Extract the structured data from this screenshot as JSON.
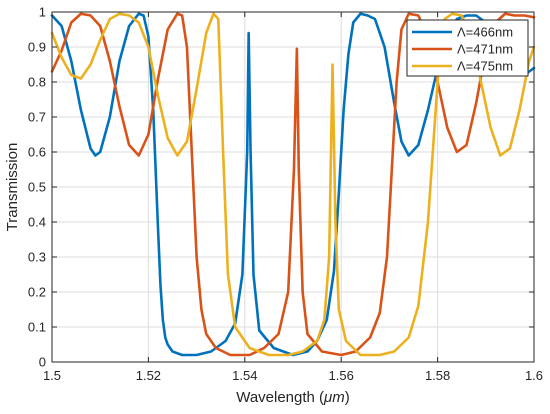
{
  "chart_data": {
    "type": "line",
    "title": "",
    "xlabel_main": "Wavelength (",
    "xlabel_unit": "μm",
    "xlabel_close": ")",
    "ylabel": "Transmission",
    "xlim": [
      1.5,
      1.6
    ],
    "ylim": [
      0,
      1
    ],
    "x_ticks": [
      1.5,
      1.52,
      1.54,
      1.56,
      1.58,
      1.6
    ],
    "x_tick_labels": [
      "1.5",
      "1.52",
      "1.54",
      "1.56",
      "1.58",
      "1.6"
    ],
    "y_ticks": [
      0,
      0.1,
      0.2,
      0.3,
      0.4,
      0.5,
      0.6,
      0.7,
      0.8,
      0.9,
      1
    ],
    "y_tick_labels": [
      "0",
      "0.1",
      "0.2",
      "0.3",
      "0.4",
      "0.5",
      "0.6",
      "0.7",
      "0.8",
      "0.9",
      "1"
    ],
    "grid": true,
    "legend_position": "top-right",
    "series": [
      {
        "name": "Λ=466nm",
        "color": "#0072BD",
        "x": [
          1.5,
          1.502,
          1.504,
          1.506,
          1.508,
          1.509,
          1.51,
          1.512,
          1.514,
          1.516,
          1.518,
          1.519,
          1.52,
          1.521,
          1.522,
          1.5225,
          1.523,
          1.5235,
          1.524,
          1.525,
          1.527,
          1.53,
          1.533,
          1.536,
          1.538,
          1.5395,
          1.5405,
          1.5408,
          1.5412,
          1.5418,
          1.543,
          1.546,
          1.55,
          1.553,
          1.555,
          1.557,
          1.5585,
          1.5595,
          1.5605,
          1.5615,
          1.5625,
          1.564,
          1.5655,
          1.567,
          1.569,
          1.571,
          1.5725,
          1.574,
          1.576,
          1.578,
          1.58,
          1.582,
          1.584,
          1.586,
          1.588,
          1.59,
          1.592,
          1.594,
          1.596,
          1.598,
          1.6
        ],
        "y": [
          0.99,
          0.96,
          0.86,
          0.72,
          0.61,
          0.59,
          0.6,
          0.7,
          0.86,
          0.96,
          0.995,
          0.99,
          0.93,
          0.72,
          0.38,
          0.22,
          0.12,
          0.07,
          0.05,
          0.03,
          0.02,
          0.02,
          0.03,
          0.06,
          0.11,
          0.25,
          0.6,
          0.94,
          0.6,
          0.25,
          0.09,
          0.04,
          0.02,
          0.03,
          0.06,
          0.12,
          0.26,
          0.48,
          0.72,
          0.88,
          0.97,
          0.995,
          0.99,
          0.98,
          0.9,
          0.74,
          0.63,
          0.59,
          0.62,
          0.72,
          0.84,
          0.93,
          0.98,
          0.99,
          0.99,
          0.97,
          0.93,
          0.88,
          0.84,
          0.82,
          0.84
        ]
      },
      {
        "name": "Λ=471nm",
        "color": "#D95319",
        "x": [
          1.5,
          1.502,
          1.504,
          1.506,
          1.508,
          1.51,
          1.512,
          1.514,
          1.516,
          1.518,
          1.52,
          1.522,
          1.524,
          1.526,
          1.527,
          1.528,
          1.529,
          1.53,
          1.531,
          1.532,
          1.534,
          1.537,
          1.541,
          1.544,
          1.547,
          1.549,
          1.5502,
          1.5508,
          1.5512,
          1.552,
          1.553,
          1.556,
          1.56,
          1.563,
          1.566,
          1.568,
          1.5695,
          1.5705,
          1.5715,
          1.5725,
          1.574,
          1.576,
          1.578,
          1.58,
          1.582,
          1.584,
          1.586,
          1.588,
          1.59,
          1.592,
          1.594,
          1.596,
          1.598,
          1.6
        ],
        "y": [
          0.83,
          0.89,
          0.97,
          0.995,
          0.99,
          0.96,
          0.86,
          0.73,
          0.62,
          0.59,
          0.65,
          0.81,
          0.95,
          0.995,
          0.99,
          0.9,
          0.6,
          0.3,
          0.15,
          0.08,
          0.04,
          0.02,
          0.02,
          0.04,
          0.08,
          0.2,
          0.55,
          0.895,
          0.55,
          0.2,
          0.08,
          0.03,
          0.02,
          0.03,
          0.07,
          0.14,
          0.3,
          0.55,
          0.8,
          0.95,
          0.995,
          0.99,
          0.93,
          0.8,
          0.67,
          0.6,
          0.62,
          0.74,
          0.89,
          0.97,
          0.995,
          0.99,
          0.99,
          0.985
        ]
      },
      {
        "name": "Λ=475nm",
        "color": "#EDB120",
        "x": [
          1.5,
          1.502,
          1.504,
          1.506,
          1.508,
          1.51,
          1.512,
          1.514,
          1.516,
          1.518,
          1.52,
          1.522,
          1.524,
          1.526,
          1.528,
          1.53,
          1.532,
          1.5335,
          1.5345,
          1.5355,
          1.5365,
          1.538,
          1.541,
          1.545,
          1.549,
          1.552,
          1.555,
          1.5565,
          1.5575,
          1.5582,
          1.5588,
          1.5595,
          1.561,
          1.564,
          1.568,
          1.571,
          1.574,
          1.576,
          1.578,
          1.5795,
          1.5805,
          1.5815,
          1.583,
          1.585,
          1.587,
          1.589,
          1.591,
          1.593,
          1.595,
          1.597,
          1.599,
          1.6
        ],
        "y": [
          0.94,
          0.87,
          0.82,
          0.81,
          0.85,
          0.92,
          0.98,
          0.995,
          0.99,
          0.97,
          0.9,
          0.76,
          0.64,
          0.59,
          0.63,
          0.78,
          0.94,
          0.995,
          0.98,
          0.6,
          0.25,
          0.1,
          0.04,
          0.02,
          0.02,
          0.03,
          0.06,
          0.12,
          0.3,
          0.85,
          0.4,
          0.15,
          0.06,
          0.02,
          0.02,
          0.03,
          0.07,
          0.16,
          0.4,
          0.7,
          0.9,
          0.98,
          0.995,
          0.99,
          0.92,
          0.8,
          0.67,
          0.59,
          0.61,
          0.72,
          0.86,
          0.9
        ]
      }
    ]
  }
}
